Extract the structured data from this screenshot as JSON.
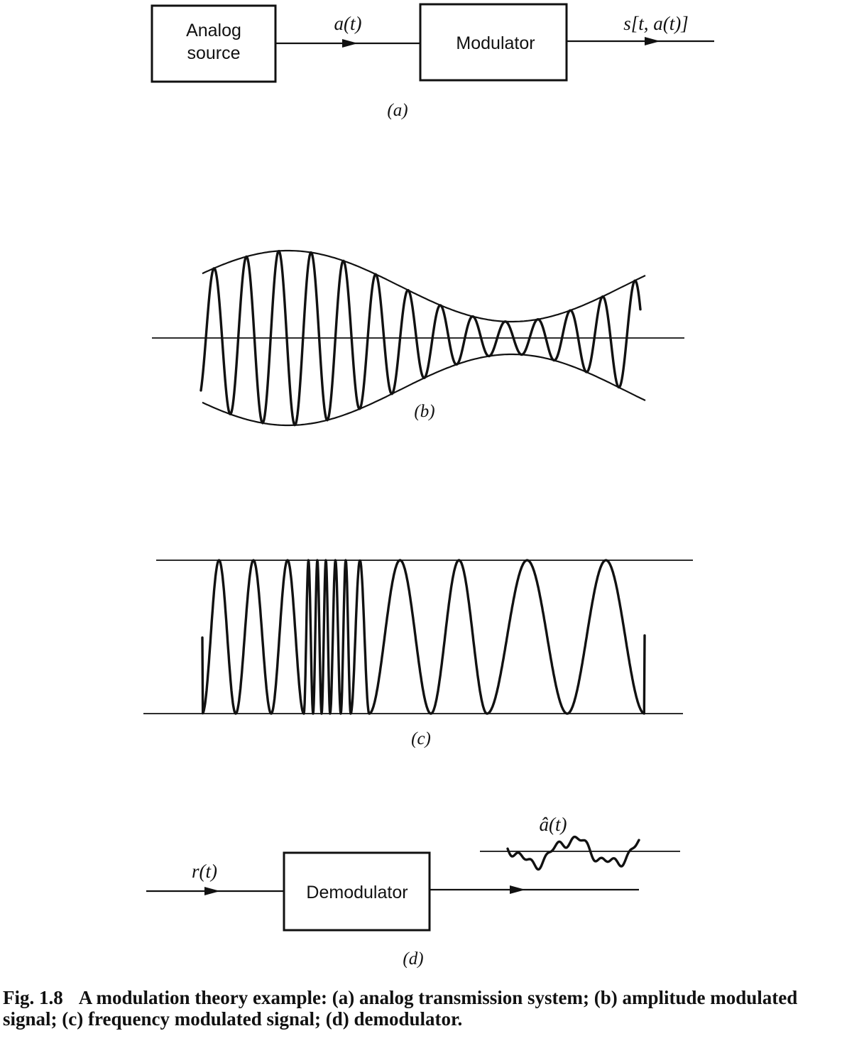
{
  "panel_a": {
    "source_label_line1": "Analog",
    "source_label_line2": "source",
    "signal_label": "a(t)",
    "modulator_label": "Modulator",
    "output_label": "s[t, a(t)]",
    "panel_label": "(a)"
  },
  "panel_b": {
    "panel_label": "(b)"
  },
  "panel_c": {
    "panel_label": "(c)"
  },
  "panel_d": {
    "input_label": "r(t)",
    "demodulator_label": "Demodulator",
    "estimate_label": "â(t)",
    "panel_label": "(d)"
  },
  "caption": {
    "figure_number": "Fig. 1.8",
    "text": "A modulation theory example: (a) analog transmission system; (b) amplitude modulated signal; (c) frequency modulated signal; (d) demodulator."
  }
}
